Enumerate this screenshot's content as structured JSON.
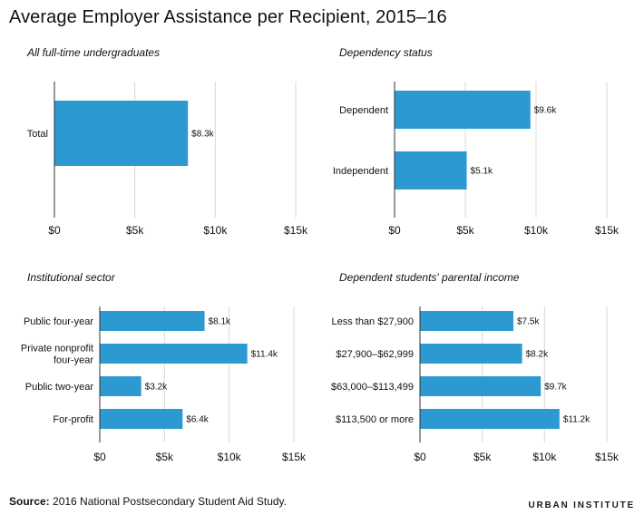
{
  "title": "Average Employer Assistance per Recipient, 2015–16",
  "source_label": "Source:",
  "source_text": "2016 National Postsecondary Student Aid Study.",
  "brand": "URBAN INSTITUTE",
  "colors": {
    "bar": "#2c99d1",
    "grid": "#d8d8d8",
    "axis": "#333333"
  },
  "chart_data": [
    {
      "type": "bar",
      "orientation": "horizontal",
      "title": "All full-time undergraduates",
      "categories": [
        "Total"
      ],
      "values": [
        8.3
      ],
      "value_labels": [
        "$8.3k"
      ],
      "xlim": [
        0,
        15
      ],
      "xticks": [
        0,
        5,
        10,
        15
      ],
      "xtick_labels": [
        "$0",
        "$5k",
        "$10k",
        "$15k"
      ],
      "grid": true
    },
    {
      "type": "bar",
      "orientation": "horizontal",
      "title": "Dependency status",
      "categories": [
        "Dependent",
        "Independent"
      ],
      "values": [
        9.6,
        5.1
      ],
      "value_labels": [
        "$9.6k",
        "$5.1k"
      ],
      "xlim": [
        0,
        15
      ],
      "xticks": [
        0,
        5,
        10,
        15
      ],
      "xtick_labels": [
        "$0",
        "$5k",
        "$10k",
        "$15k"
      ],
      "grid": true
    },
    {
      "type": "bar",
      "orientation": "horizontal",
      "title": "Institutional sector",
      "categories": [
        [
          "Public four-year"
        ],
        [
          "Private nonprofit",
          "four-year"
        ],
        [
          "Public two-year"
        ],
        [
          "For-profit"
        ]
      ],
      "values": [
        8.1,
        11.4,
        3.2,
        6.4
      ],
      "value_labels": [
        "$8.1k",
        "$11.4k",
        "$3.2k",
        "$6.4k"
      ],
      "xlim": [
        0,
        15
      ],
      "xticks": [
        0,
        5,
        10,
        15
      ],
      "xtick_labels": [
        "$0",
        "$5k",
        "$10k",
        "$15k"
      ],
      "grid": true
    },
    {
      "type": "bar",
      "orientation": "horizontal",
      "title": "Dependent students' parental income",
      "categories": [
        "Less than $27,900",
        "$27,900–$62,999",
        "$63,000–$113,499",
        "$113,500 or more"
      ],
      "values": [
        7.5,
        8.2,
        9.7,
        11.2
      ],
      "value_labels": [
        "$7.5k",
        "$8.2k",
        "$9.7k",
        "$11.2k"
      ],
      "xlim": [
        0,
        15
      ],
      "xticks": [
        0,
        5,
        10,
        15
      ],
      "xtick_labels": [
        "$0",
        "$5k",
        "$10k",
        "$15k"
      ],
      "grid": true
    }
  ]
}
